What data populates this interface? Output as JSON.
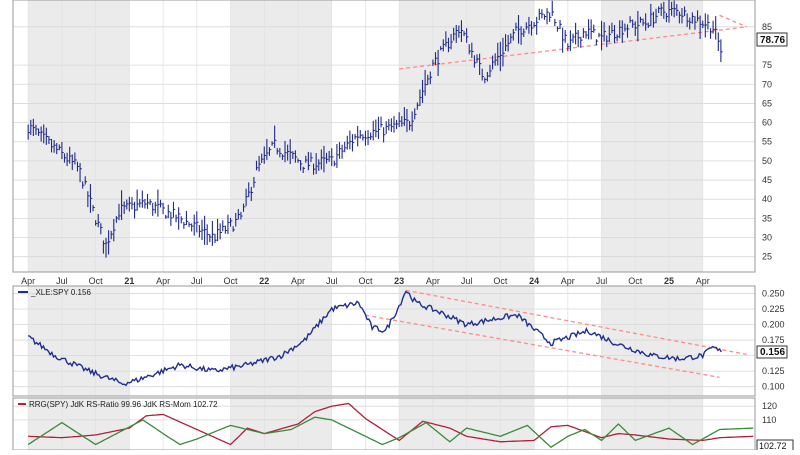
{
  "chart_data": [
    {
      "type": "ohlc",
      "title": "",
      "x_tick_labels": [
        "Apr",
        "Jul",
        "Oct",
        "21",
        "Apr",
        "Jul",
        "Oct",
        "22",
        "Apr",
        "Jul",
        "Oct",
        "23",
        "Apr",
        "Jul",
        "Oct",
        "24",
        "Apr",
        "Jul",
        "Oct",
        "25",
        "Apr"
      ],
      "y_ticks": [
        25,
        30,
        35,
        40,
        45,
        50,
        55,
        60,
        65,
        70,
        75,
        85
      ],
      "ylim": [
        21,
        92
      ],
      "last_value_label": "78.76",
      "price_path_t": [
        0,
        1.5,
        2,
        2.3,
        2.7,
        3.5,
        4.5,
        5.5,
        6.3,
        6.8,
        7.3,
        8.2,
        9,
        9.8,
        10.5,
        11.3,
        12,
        12.8,
        13.5,
        14.5,
        15.5,
        16,
        16.5,
        17,
        17.7,
        18.3,
        18.8,
        19.3,
        19.8,
        20.3,
        20.55
      ],
      "price_path_v": [
        59,
        48,
        35,
        28,
        37,
        39,
        35,
        30,
        35,
        48,
        54,
        49,
        50,
        57,
        58,
        60,
        75,
        85,
        72,
        84,
        89,
        80,
        84,
        82,
        85,
        86,
        89,
        89,
        87,
        85,
        78.76
      ],
      "resistance_trend": {
        "t": [
          20.5,
          21.3
        ],
        "v": [
          88,
          85
        ]
      },
      "support_trend": {
        "t": [
          11,
          21.3
        ],
        "v": [
          74,
          85
        ]
      },
      "shaded_periods": [
        [
          0,
          3
        ],
        [
          6,
          9
        ],
        [
          11,
          15
        ],
        [
          17,
          20
        ]
      ]
    },
    {
      "type": "line",
      "legend_label": "_XLE:SPY 0.156",
      "series": [
        {
          "name": "_XLE:SPY"
        }
      ],
      "y_ticks": [
        0.1,
        0.125,
        0.15,
        0.175,
        0.2,
        0.225,
        0.25
      ],
      "ylim": [
        0.085,
        0.262
      ],
      "last_value_label": "0.156",
      "path_t": [
        0,
        0.8,
        1.8,
        2.8,
        3.2,
        4.5,
        5.5,
        6.5,
        7.5,
        8.2,
        9,
        9.8,
        10.2,
        10.6,
        11,
        11.2,
        11.5,
        12.2,
        13,
        14.1,
        14.5,
        15.5,
        16.6,
        17.5,
        18.5,
        19.3,
        20,
        20.3,
        20.55
      ],
      "path_v": [
        0.18,
        0.15,
        0.125,
        0.105,
        0.11,
        0.135,
        0.125,
        0.135,
        0.15,
        0.175,
        0.225,
        0.235,
        0.195,
        0.19,
        0.23,
        0.255,
        0.235,
        0.22,
        0.2,
        0.212,
        0.215,
        0.17,
        0.19,
        0.168,
        0.15,
        0.145,
        0.15,
        0.163,
        0.156
      ],
      "upper_channel": {
        "t": [
          11.2,
          21.3
        ],
        "v": [
          0.255,
          0.152
        ]
      },
      "lower_channel": {
        "t": [
          10,
          20.5
        ],
        "v": [
          0.215,
          0.115
        ]
      }
    },
    {
      "type": "line",
      "legend_label": "RRG(SPY) JdK RS-Ratio 99.96 JdK RS-Mom 102.72",
      "series": [
        {
          "name": "JdK RS-Ratio",
          "color": "#b0203c",
          "t": [
            0,
            1,
            2,
            3,
            3.5,
            4,
            5,
            6,
            6.5,
            7,
            8,
            8.5,
            9,
            9.5,
            10,
            11,
            11.7,
            12.5,
            13,
            14,
            15,
            15.5,
            16,
            17,
            17.5,
            18,
            19,
            20,
            20.5,
            21.5
          ],
          "v": [
            98,
            97,
            99,
            104,
            113,
            114,
            103,
            92,
            104,
            100,
            107,
            116,
            120,
            122,
            111,
            95,
            109,
            104,
            98,
            94,
            95,
            105,
            106,
            97,
            100,
            99,
            96,
            95,
            97,
            98
          ]
        },
        {
          "name": "JdK RS-Mom",
          "color": "#3a8a3a",
          "t": [
            0,
            1,
            2,
            3.4,
            4,
            4.5,
            5,
            6,
            7,
            7.8,
            8.5,
            9,
            9.5,
            10.5,
            11,
            11.8,
            12.5,
            13,
            14,
            14.8,
            15.5,
            16,
            16.5,
            17,
            17.5,
            18,
            19,
            19.7,
            20.5,
            21.5
          ],
          "v": [
            92,
            108,
            92,
            110,
            100,
            92,
            96,
            106,
            100,
            103,
            112,
            110,
            104,
            92,
            97,
            108,
            94,
            104,
            98,
            106,
            90,
            98,
            103,
            95,
            107,
            95,
            104,
            92,
            103,
            104
          ]
        }
      ],
      "y_ticks": [
        110,
        120
      ],
      "ylim": [
        88,
        126
      ],
      "last_value_label": "102.72"
    }
  ]
}
